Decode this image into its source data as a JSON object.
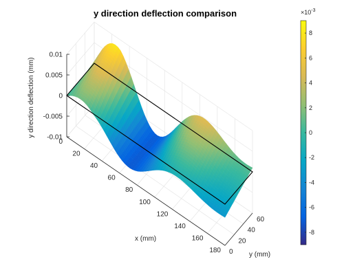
{
  "chart_data": {
    "type": "surface",
    "title": "y direction deflection comparison",
    "xlabel": "x (mm)",
    "ylabel": "y (mm)",
    "zlabel": "y direction deflection (mm)",
    "xlim": [
      0,
      180
    ],
    "ylim": [
      0,
      60
    ],
    "zlim": [
      -0.01,
      0.01
    ],
    "x_ticks": [
      "0",
      "20",
      "40",
      "60",
      "80",
      "100",
      "120",
      "140",
      "160",
      "180"
    ],
    "y_ticks": [
      "0",
      "20",
      "40",
      "60"
    ],
    "z_ticks": [
      "0.01",
      "0.005",
      "0",
      "-0.005",
      "-0.01"
    ],
    "grid": true,
    "colormap": "parula",
    "colorbar": {
      "exponent_label": "×10",
      "exponent_power": "-3",
      "range": [
        -9,
        9
      ],
      "ticks": [
        "8",
        "6",
        "4",
        "2",
        "0",
        "-2",
        "-4",
        "-6",
        "-8"
      ]
    },
    "surface_extent": {
      "x_range": [
        0,
        180
      ],
      "y_range": [
        0,
        60
      ],
      "max_deflection": 0.009,
      "min_deflection": -0.009,
      "peak_x": 12,
      "dip_x": 60
    },
    "colors": {
      "parula_stops": [
        "#352a87",
        "#0363e1",
        "#1485d4",
        "#06a7c6",
        "#38b99e",
        "#92bf73",
        "#d9ba56",
        "#fcce2e",
        "#f9fb0e"
      ],
      "frame": "#000000",
      "grid": "#e6e6e6"
    }
  }
}
